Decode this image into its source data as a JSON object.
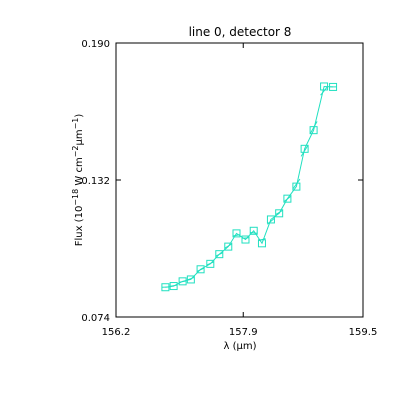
{
  "chart_data": {
    "type": "line",
    "title": "line 0, detector 8",
    "xlabel": "λ (μm)",
    "ylabel": {
      "prefix": "Flux (10",
      "exp1": "−18",
      "mid": " W cm",
      "exp2": "−2",
      "mu": "μm",
      "exp3": "−1",
      "suffix": ")"
    },
    "xlim": [
      156.2,
      159.5
    ],
    "ylim": [
      0.074,
      0.19
    ],
    "xticks": [
      {
        "value": 156.2,
        "label": "156.2"
      },
      {
        "value": 157.9,
        "label": "157.9"
      },
      {
        "value": 159.5,
        "label": "159.5"
      }
    ],
    "yticks": [
      {
        "value": 0.074,
        "label": "0.074"
      },
      {
        "value": 0.132,
        "label": "0.132"
      },
      {
        "value": 0.19,
        "label": "0.190"
      }
    ],
    "series_color": "#20e0c0",
    "marker": "square",
    "x": [
      156.86,
      156.97,
      157.09,
      157.2,
      157.33,
      157.46,
      157.58,
      157.7,
      157.81,
      157.93,
      158.04,
      158.15,
      158.27,
      158.38,
      158.49,
      158.61,
      158.72,
      158.84,
      158.98,
      159.1
    ],
    "y": [
      0.0866,
      0.0871,
      0.0891,
      0.0899,
      0.0942,
      0.0965,
      0.1006,
      0.1038,
      0.1094,
      0.1068,
      0.1105,
      0.1052,
      0.1153,
      0.1179,
      0.1241,
      0.1292,
      0.1452,
      0.1531,
      0.1716,
      0.1714
    ]
  }
}
